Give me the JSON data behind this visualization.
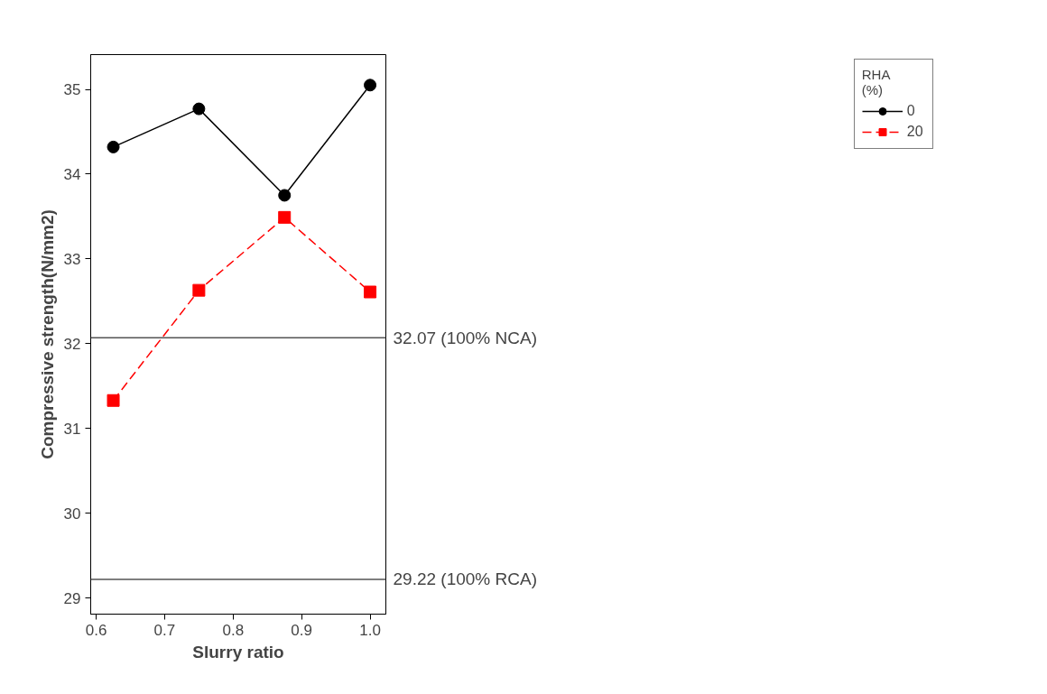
{
  "chart_data": {
    "type": "line",
    "xlabel": "Slurry ratio",
    "ylabel": "Compressive strength(N/mm2)",
    "legend_title": "RHA\n(%)",
    "x": [
      0.625,
      0.75,
      0.875,
      1.0
    ],
    "series": [
      {
        "name": "0",
        "color": "#000000",
        "values": [
          34.32,
          34.77,
          33.75,
          35.05
        ],
        "marker": "circle",
        "line_style": "solid"
      },
      {
        "name": "20",
        "color": "#ff0000",
        "values": [
          31.33,
          32.63,
          33.49,
          32.61
        ],
        "marker": "square",
        "line_style": "dashed"
      }
    ],
    "xlim": [
      0.592,
      1.023
    ],
    "xticks": [
      0.6,
      0.7,
      0.8,
      0.9,
      {
        "value": 1.0,
        "label": "1.0"
      }
    ],
    "ylim": [
      28.81,
      35.41
    ],
    "yticks": [
      29,
      30,
      31,
      32,
      33,
      34,
      35
    ],
    "ref_lines": [
      {
        "axis": "y",
        "value": 32.07,
        "label": "32.07 (100% NCA)",
        "color": "#555555"
      },
      {
        "axis": "y",
        "value": 29.22,
        "label": "29.22 (100% RCA)",
        "color": "#555555"
      }
    ],
    "grid": false,
    "legend": "top right"
  }
}
